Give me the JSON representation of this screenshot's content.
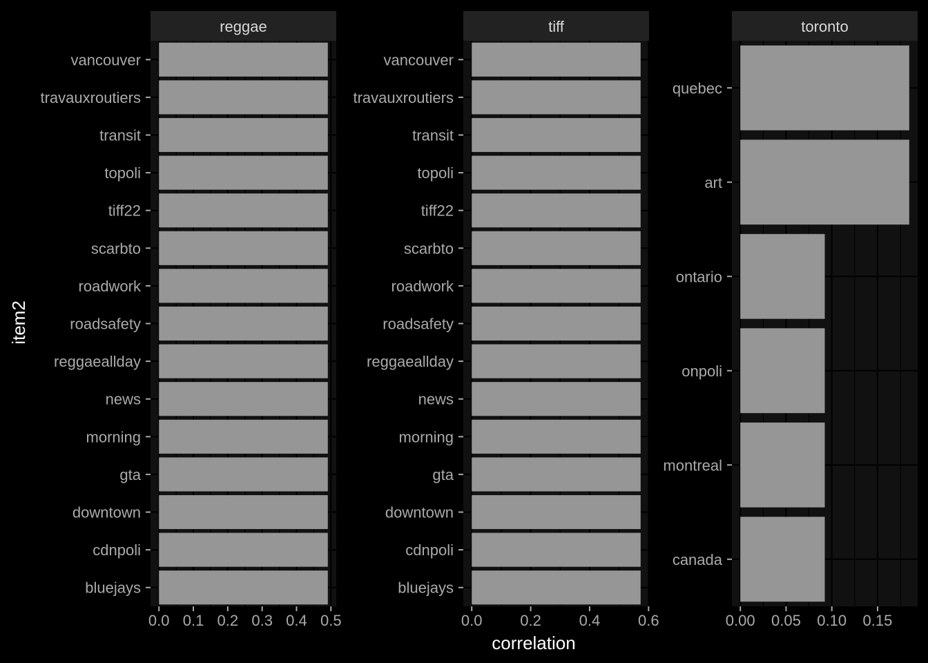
{
  "colors": {
    "background": "#000000",
    "panel": "#111111",
    "strip": "#222222",
    "grid": "#000000",
    "bar": "#969696",
    "tick_text": "#aaaaaa",
    "strip_text": "#d9d9d9",
    "axis_title": "#ffffff"
  },
  "chart_data": {
    "type": "bar",
    "orientation": "horizontal",
    "xlabel": "correlation",
    "ylabel": "item2",
    "grid": true,
    "panels": [
      {
        "title": "reggae",
        "categories": [
          "vancouver",
          "travauxroutiers",
          "transit",
          "topoli",
          "tiff22",
          "scarbto",
          "roadwork",
          "roadsafety",
          "reggaeallday",
          "news",
          "morning",
          "gta",
          "downtown",
          "cdnpoli",
          "bluejays"
        ],
        "values": [
          0.491,
          0.491,
          0.491,
          0.491,
          0.491,
          0.491,
          0.491,
          0.491,
          0.491,
          0.491,
          0.491,
          0.491,
          0.491,
          0.491,
          0.491
        ],
        "xlim": [
          -0.0245,
          0.5155
        ],
        "ticks": [
          0.0,
          0.1,
          0.2,
          0.3,
          0.4,
          0.5
        ],
        "tick_labels": [
          "0.0",
          "0.1",
          "0.2",
          "0.3",
          "0.4",
          "0.5"
        ]
      },
      {
        "title": "tiff",
        "categories": [
          "vancouver",
          "travauxroutiers",
          "transit",
          "topoli",
          "tiff22",
          "scarbto",
          "roadwork",
          "roadsafety",
          "reggaeallday",
          "news",
          "morning",
          "gta",
          "downtown",
          "cdnpoli",
          "bluejays"
        ],
        "values": [
          0.573,
          0.573,
          0.573,
          0.573,
          0.573,
          0.573,
          0.573,
          0.573,
          0.573,
          0.573,
          0.573,
          0.573,
          0.573,
          0.573,
          0.573
        ],
        "xlim": [
          -0.0286,
          0.6016
        ],
        "ticks": [
          0.0,
          0.2,
          0.4,
          0.6
        ],
        "tick_labels": [
          "0.0",
          "0.2",
          "0.4",
          "0.6"
        ]
      },
      {
        "title": "toronto",
        "categories": [
          "quebec",
          "art",
          "ontario",
          "onpoli",
          "montreal",
          "canada"
        ],
        "values": [
          0.1846,
          0.1846,
          0.0923,
          0.0923,
          0.0923,
          0.0923
        ],
        "xlim": [
          -0.0092,
          0.1938
        ],
        "ticks": [
          0.0,
          0.05,
          0.1,
          0.15
        ],
        "tick_labels": [
          "0.00",
          "0.05",
          "0.10",
          "0.15"
        ]
      }
    ]
  }
}
